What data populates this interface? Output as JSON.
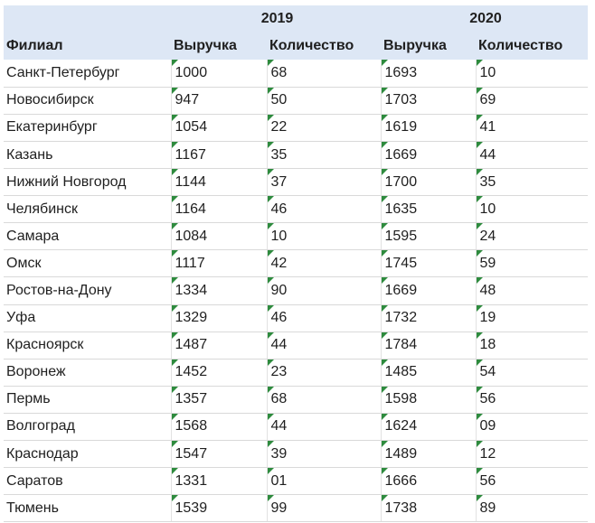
{
  "header": {
    "year_2019": "2019",
    "year_2020": "2020",
    "branch": "Филиал",
    "revenue_2019": "Выручка",
    "quantity_2019": "Количество",
    "revenue_2020": "Выручка",
    "quantity_2020": "Количество"
  },
  "rows": [
    {
      "branch": "Санкт-Петербург",
      "revenue_2019": "1000",
      "quantity_2019": "68",
      "revenue_2020": "1693",
      "quantity_2020": "10"
    },
    {
      "branch": "Новосибирск",
      "revenue_2019": "947",
      "quantity_2019": "50",
      "revenue_2020": "1703",
      "quantity_2020": "69"
    },
    {
      "branch": "Екатеринбург",
      "revenue_2019": "1054",
      "quantity_2019": "22",
      "revenue_2020": "1619",
      "quantity_2020": "41"
    },
    {
      "branch": "Казань",
      "revenue_2019": "1167",
      "quantity_2019": "35",
      "revenue_2020": "1669",
      "quantity_2020": "44"
    },
    {
      "branch": "Нижний Новгород",
      "revenue_2019": "1144",
      "quantity_2019": "37",
      "revenue_2020": "1700",
      "quantity_2020": "35"
    },
    {
      "branch": "Челябинск",
      "revenue_2019": "1164",
      "quantity_2019": "46",
      "revenue_2020": "1635",
      "quantity_2020": "10"
    },
    {
      "branch": "Самара",
      "revenue_2019": "1084",
      "quantity_2019": "10",
      "revenue_2020": "1595",
      "quantity_2020": "24"
    },
    {
      "branch": "Омск",
      "revenue_2019": "1117",
      "quantity_2019": "42",
      "revenue_2020": "1745",
      "quantity_2020": "59"
    },
    {
      "branch": "Ростов-на-Дону",
      "revenue_2019": "1334",
      "quantity_2019": "90",
      "revenue_2020": "1669",
      "quantity_2020": "48"
    },
    {
      "branch": "Уфа",
      "revenue_2019": "1329",
      "quantity_2019": "46",
      "revenue_2020": "1732",
      "quantity_2020": "19"
    },
    {
      "branch": "Красноярск",
      "revenue_2019": "1487",
      "quantity_2019": "44",
      "revenue_2020": "1784",
      "quantity_2020": "18"
    },
    {
      "branch": "Воронеж",
      "revenue_2019": "1452",
      "quantity_2019": "23",
      "revenue_2020": "1485",
      "quantity_2020": "54"
    },
    {
      "branch": "Пермь",
      "revenue_2019": "1357",
      "quantity_2019": "68",
      "revenue_2020": "1598",
      "quantity_2020": "56"
    },
    {
      "branch": "Волгоград",
      "revenue_2019": "1568",
      "quantity_2019": "44",
      "revenue_2020": "1624",
      "quantity_2020": "09"
    },
    {
      "branch": "Краснодар",
      "revenue_2019": "1547",
      "quantity_2019": "39",
      "revenue_2020": "1489",
      "quantity_2020": "12"
    },
    {
      "branch": "Саратов",
      "revenue_2019": "1331",
      "quantity_2019": "01",
      "revenue_2020": "1666",
      "quantity_2020": "56"
    },
    {
      "branch": "Тюмень",
      "revenue_2019": "1539",
      "quantity_2019": "99",
      "revenue_2020": "1738",
      "quantity_2020": "89"
    }
  ],
  "colors": {
    "header_fill": "#dde7f5",
    "error_flag": "#2e8b3e",
    "gridline": "#d9d9d9"
  }
}
